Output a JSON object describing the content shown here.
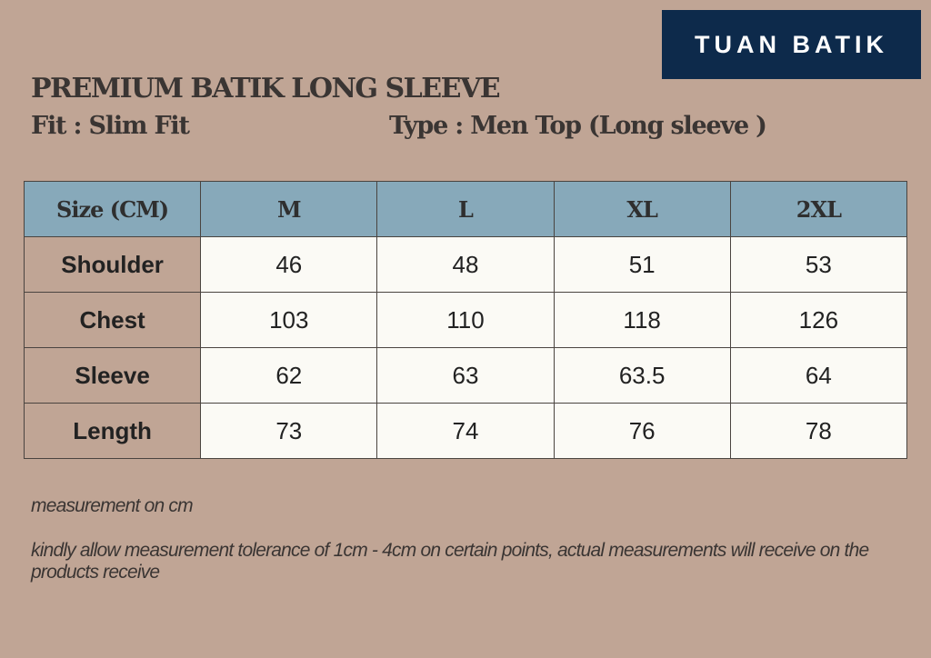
{
  "brand": "TUAN BATIK",
  "title": "PREMIUM BATIK LONG SLEEVE",
  "fit": "Fit : Slim Fit",
  "type": "Type : Men Top (Long sleeve )",
  "table": {
    "header": [
      "Size (CM)",
      "M",
      "L",
      "XL",
      "2XL"
    ],
    "rows": [
      {
        "label": "Shoulder",
        "values": [
          "46",
          "48",
          "51",
          "53"
        ]
      },
      {
        "label": "Chest",
        "values": [
          "103",
          "110",
          "118",
          "126"
        ]
      },
      {
        "label": "Sleeve",
        "values": [
          "62",
          "63",
          "63.5",
          "64"
        ]
      },
      {
        "label": "Length",
        "values": [
          "73",
          "74",
          "76",
          "78"
        ]
      }
    ]
  },
  "notes": {
    "unit": "measurement on cm",
    "tolerance": "kindly allow measurement tolerance of 1cm - 4cm on certain points, actual measurements will receive on the products receive"
  }
}
